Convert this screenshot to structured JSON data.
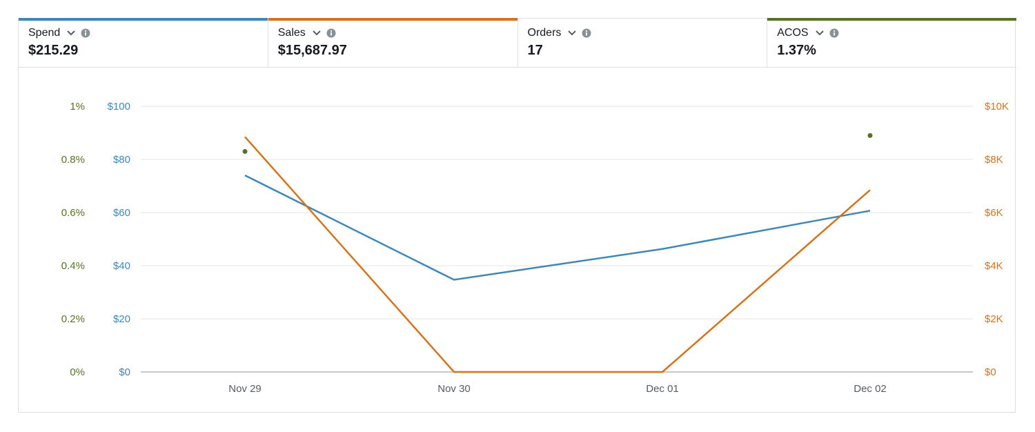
{
  "metrics": [
    {
      "name": "Spend",
      "value": "$215.29",
      "color": "#3f87b6",
      "icon": "chevron-down-icon"
    },
    {
      "name": "Sales",
      "value": "$15,687.97",
      "color": "#d4731b",
      "icon": "chevron-down-icon"
    },
    {
      "name": "Orders",
      "value": "17",
      "color": "",
      "icon": "chevron-down-icon"
    },
    {
      "name": "ACOS",
      "value": "1.37%",
      "color": "#557225",
      "icon": "chevron-down-icon"
    }
  ],
  "chart_data": {
    "type": "line",
    "categories": [
      "Nov 29",
      "Nov 30",
      "Dec 01",
      "Dec 02"
    ],
    "series": [
      {
        "name": "Spend",
        "axis": "left",
        "color": "#3f87b6",
        "values": [
          74,
          34.7,
          46.3,
          60.7
        ]
      },
      {
        "name": "Sales",
        "axis": "right",
        "color": "#d4731b",
        "values": [
          8850,
          0,
          0,
          6850
        ]
      },
      {
        "name": "ACOS",
        "axis": "acos",
        "color": "#557225",
        "style": "points",
        "values": [
          0.83,
          null,
          null,
          0.89
        ]
      }
    ],
    "y_left": {
      "ticks": [
        "$0",
        "$20",
        "$40",
        "$60",
        "$80",
        "$100"
      ],
      "range": [
        0,
        100
      ]
    },
    "y_acos": {
      "ticks": [
        "0%",
        "0.2%",
        "0.4%",
        "0.6%",
        "0.8%",
        "1%"
      ],
      "range": [
        0,
        1
      ]
    },
    "y_right": {
      "ticks": [
        "$0",
        "$2K",
        "$4K",
        "$6K",
        "$8K",
        "$10K"
      ],
      "range": [
        0,
        10000
      ]
    },
    "grid": true,
    "colors": {
      "grid": "#e3e3e3",
      "baseline": "#c8c8c8",
      "acos_axis": "#557225",
      "spend_axis": "#3f87b6",
      "sales_axis": "#d4731b",
      "xtick": "#545b64"
    }
  }
}
